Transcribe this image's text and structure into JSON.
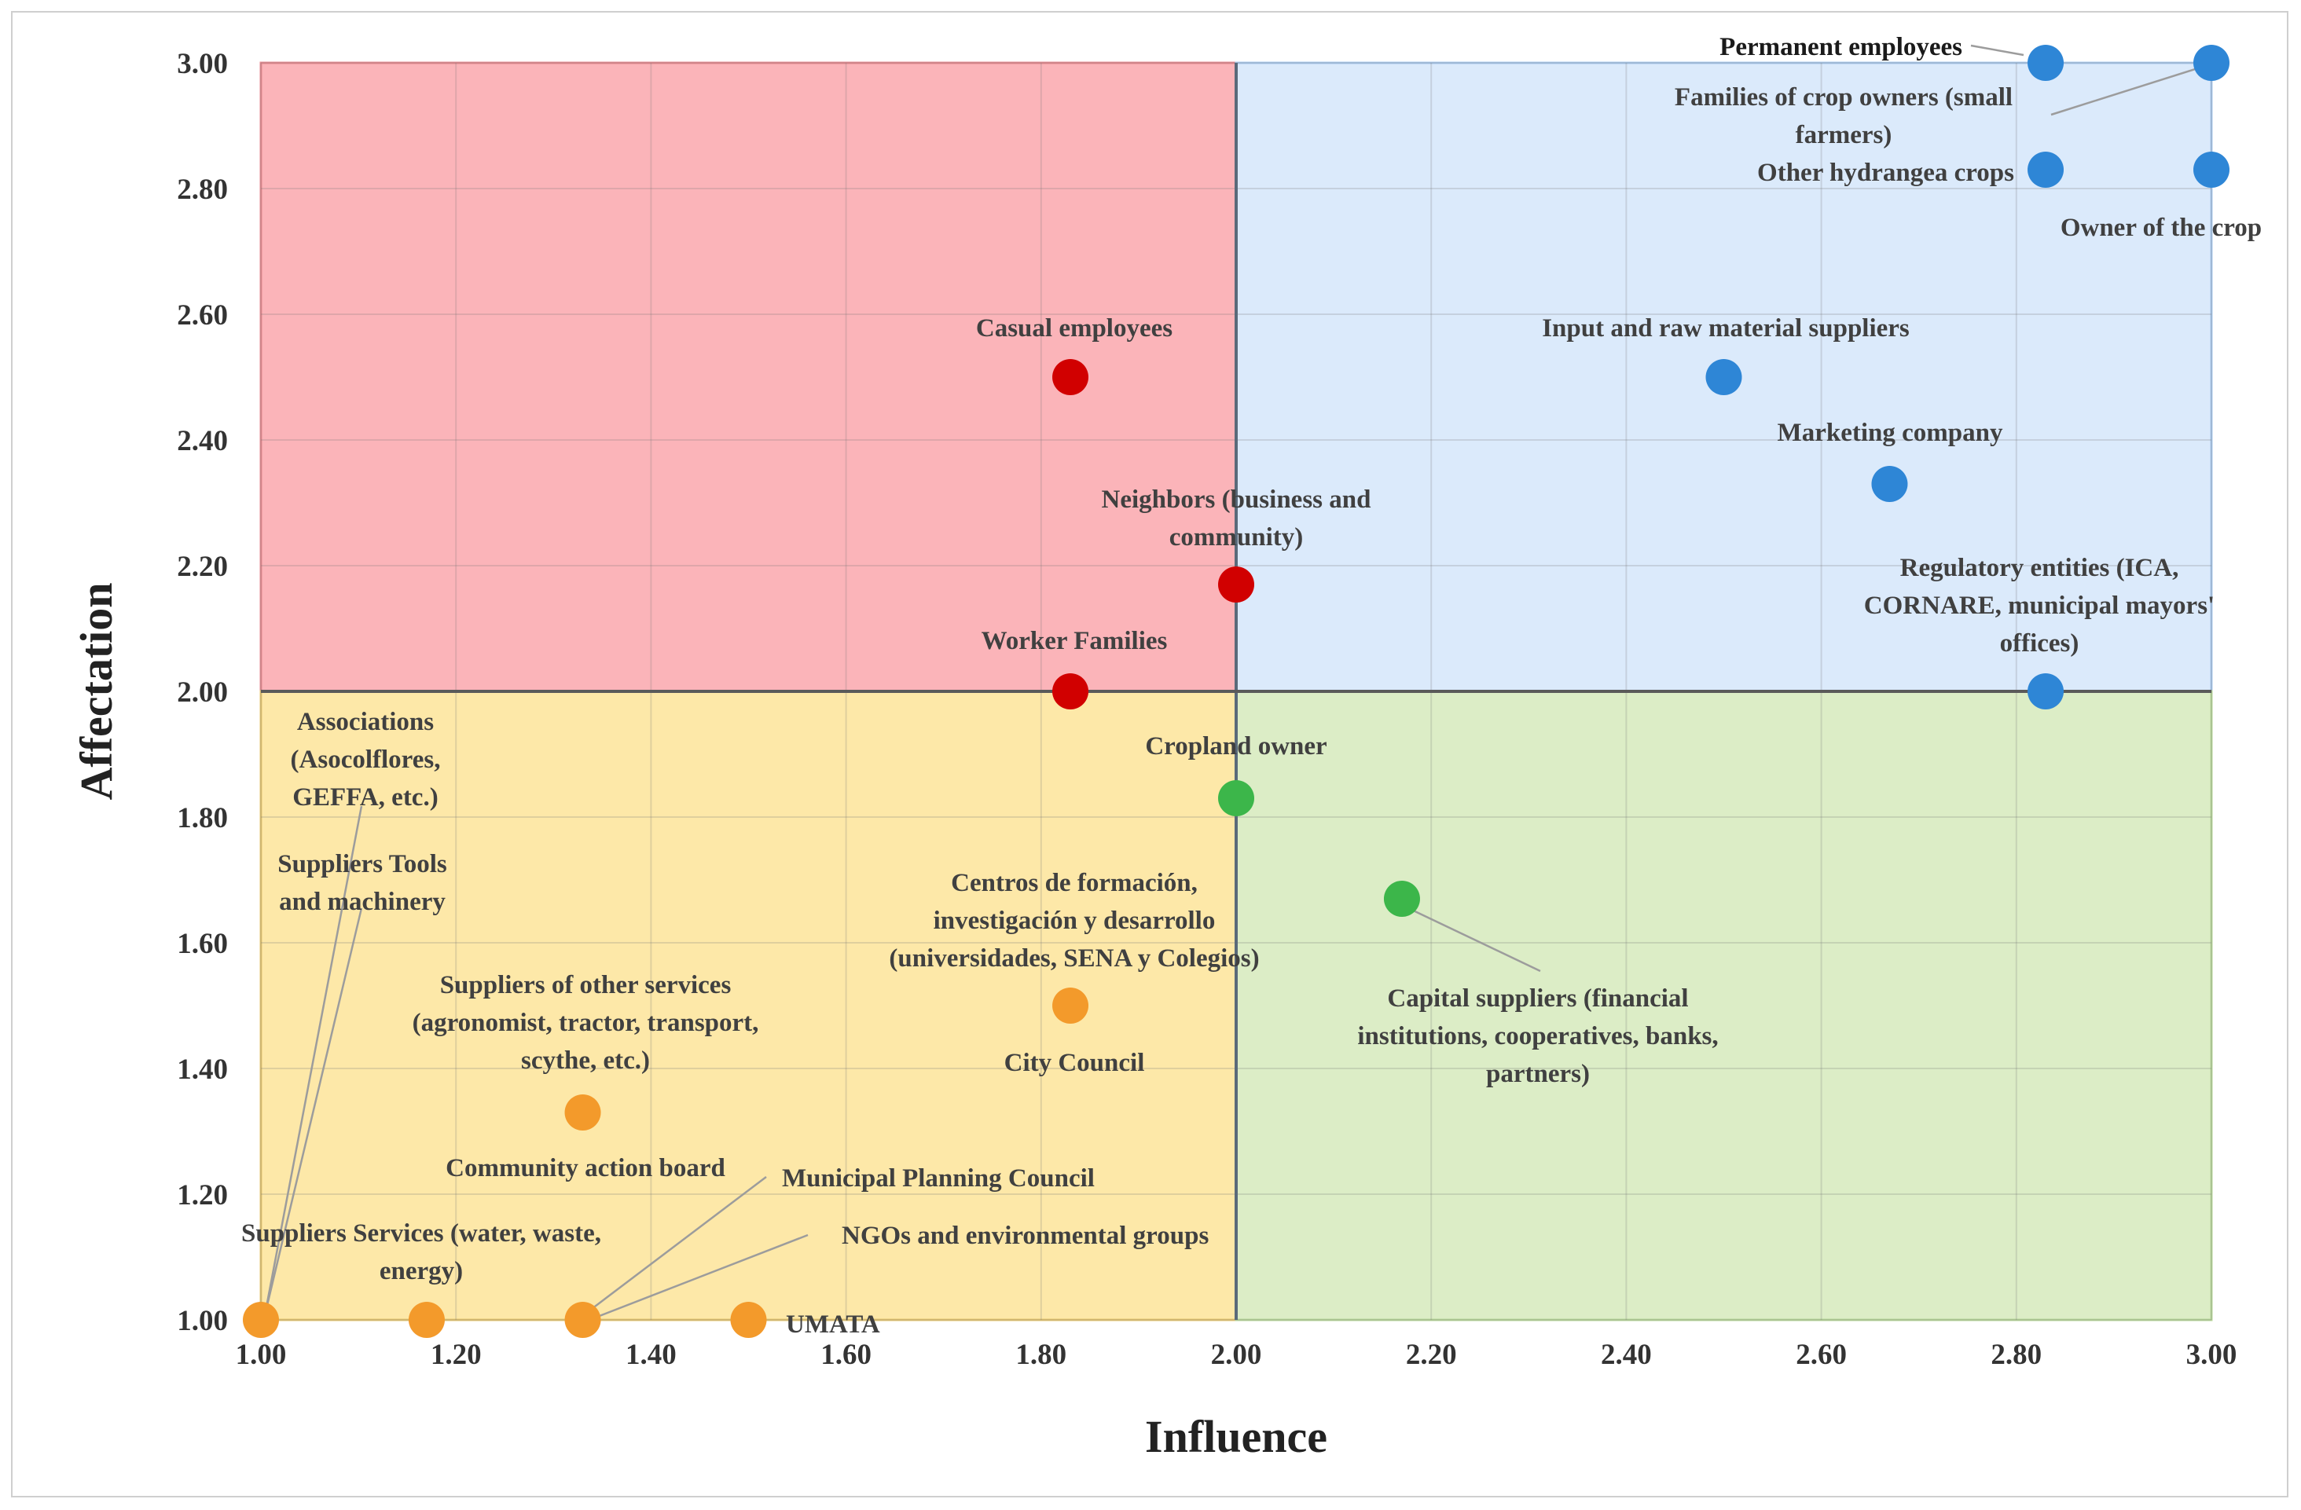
{
  "chart_data": {
    "type": "scatter",
    "xlabel": "Influence",
    "ylabel": "Affectation",
    "xlim": [
      1.0,
      3.0
    ],
    "ylim": [
      1.0,
      3.0
    ],
    "x_ticks": [
      "1.00",
      "1.20",
      "1.40",
      "1.60",
      "1.80",
      "2.00",
      "2.20",
      "2.40",
      "2.60",
      "2.80",
      "3.00"
    ],
    "y_ticks": [
      "1.00",
      "1.20",
      "1.40",
      "1.60",
      "1.80",
      "2.00",
      "2.20",
      "2.40",
      "2.60",
      "2.80",
      "3.00"
    ],
    "grid": true,
    "quadrants": [
      {
        "name": "top-left",
        "x": [
          1.0,
          2.0
        ],
        "y": [
          2.0,
          3.0
        ],
        "color": "#fbb4b9"
      },
      {
        "name": "top-right",
        "x": [
          2.0,
          3.0
        ],
        "y": [
          2.0,
          3.0
        ],
        "color": "#dbeafb"
      },
      {
        "name": "bottom-left",
        "x": [
          1.0,
          2.0
        ],
        "y": [
          1.0,
          2.0
        ],
        "color": "#fde8a8"
      },
      {
        "name": "bottom-right",
        "x": [
          2.0,
          3.0
        ],
        "y": [
          1.0,
          2.0
        ],
        "color": "#dcedc6"
      }
    ],
    "series": [
      {
        "name": "red",
        "color": "#d10000",
        "points": [
          {
            "label": "Casual employees",
            "x": 1.83,
            "y": 2.5
          },
          {
            "label": "Neighbors (business and community)",
            "x": 2.0,
            "y": 2.17
          },
          {
            "label": "Worker Families",
            "x": 1.83,
            "y": 2.0
          }
        ]
      },
      {
        "name": "blue",
        "color": "#2e86d6",
        "points": [
          {
            "label": "Permanent employees",
            "x": 2.83,
            "y": 3.0
          },
          {
            "label": "Families of crop owners (small farmers)",
            "x": 3.0,
            "y": 3.0
          },
          {
            "label": "Other hydrangea crops",
            "x": 2.83,
            "y": 2.83
          },
          {
            "label": "Owner of the crop",
            "x": 3.0,
            "y": 2.83
          },
          {
            "label": "Input and raw material suppliers",
            "x": 2.5,
            "y": 2.5
          },
          {
            "label": "Marketing company",
            "x": 2.67,
            "y": 2.33
          },
          {
            "label": "Regulatory entities (ICA, CORNARE, municipal mayors' offices)",
            "x": 2.83,
            "y": 2.0
          }
        ]
      },
      {
        "name": "green",
        "color": "#3cb64a",
        "points": [
          {
            "label": "Cropland owner",
            "x": 2.0,
            "y": 1.83
          },
          {
            "label": "Capital suppliers (financial institutions, cooperatives, banks, partners)",
            "x": 2.17,
            "y": 1.67
          }
        ]
      },
      {
        "name": "orange",
        "color": "#f39a2b",
        "points": [
          {
            "label": "Centros de formación, investigación y desarrollo (universidades, SENA y Colegios)",
            "x": 1.83,
            "y": 1.5
          },
          {
            "label": "City Council",
            "x": 1.83,
            "y": 1.5
          },
          {
            "label": "Suppliers of other services (agronomist, tractor, transport, scythe, etc.)",
            "x": 1.33,
            "y": 1.33
          },
          {
            "label": "Associations (Asocolflores, GEFFA, etc.)",
            "x": 1.0,
            "y": 1.0
          },
          {
            "label": "Suppliers Tools and machinery",
            "x": 1.0,
            "y": 1.0
          },
          {
            "label": "Suppliers Services (water, waste, energy)",
            "x": 1.17,
            "y": 1.0
          },
          {
            "label": "Community action board",
            "x": 1.33,
            "y": 1.0
          },
          {
            "label": "Municipal Planning Council",
            "x": 1.33,
            "y": 1.0
          },
          {
            "label": "NGOs and environmental groups",
            "x": 1.33,
            "y": 1.0
          },
          {
            "label": "UMATA",
            "x": 1.5,
            "y": 1.0
          }
        ]
      }
    ]
  }
}
